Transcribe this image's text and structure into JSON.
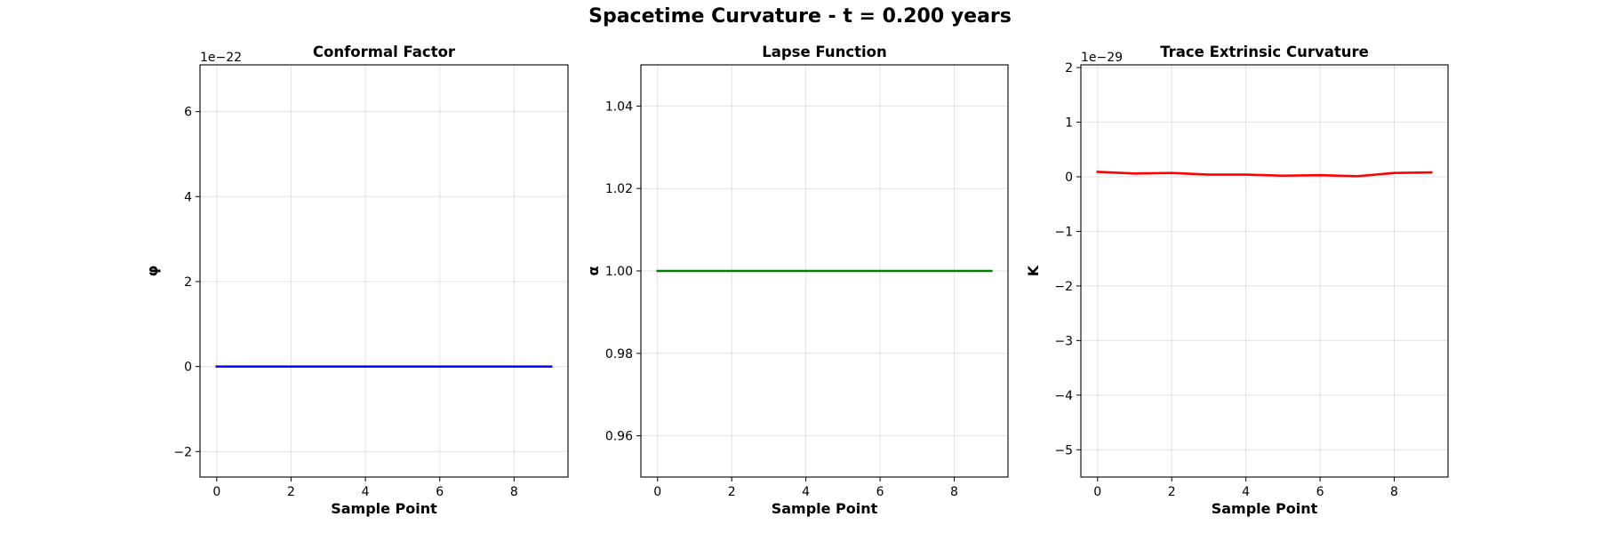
{
  "figure_title": "Spacetime Curvature - t = 0.200 years",
  "chart_data": [
    {
      "type": "line",
      "title": "Conformal Factor",
      "xlabel": "Sample Point",
      "ylabel": "φ",
      "offset_text": "1e−22",
      "color": "#0000ff",
      "xlim": [
        -0.45,
        9.45
      ],
      "ylim": [
        -2.6,
        7.1
      ],
      "x_ticks": [
        0,
        2,
        4,
        6,
        8
      ],
      "x_tick_labels": [
        "0",
        "2",
        "4",
        "6",
        "8"
      ],
      "y_ticks": [
        -2,
        0,
        2,
        4,
        6
      ],
      "y_tick_labels": [
        "−2",
        "0",
        "2",
        "4",
        "6"
      ],
      "grid": true,
      "series": [
        {
          "x": [
            0,
            1,
            2,
            3,
            4,
            5,
            6,
            7,
            8,
            9
          ],
          "y": [
            0,
            0,
            0,
            0,
            0,
            0,
            0,
            0,
            0,
            0
          ]
        }
      ]
    },
    {
      "type": "line",
      "title": "Lapse Function",
      "xlabel": "Sample Point",
      "ylabel": "α",
      "offset_text": "",
      "color": "#008000",
      "xlim": [
        -0.45,
        9.45
      ],
      "ylim": [
        0.95,
        1.05
      ],
      "x_ticks": [
        0,
        2,
        4,
        6,
        8
      ],
      "x_tick_labels": [
        "0",
        "2",
        "4",
        "6",
        "8"
      ],
      "y_ticks": [
        0.96,
        0.98,
        1.0,
        1.02,
        1.04
      ],
      "y_tick_labels": [
        "0.96",
        "0.98",
        "1.00",
        "1.02",
        "1.04"
      ],
      "grid": true,
      "series": [
        {
          "x": [
            0,
            1,
            2,
            3,
            4,
            5,
            6,
            7,
            8,
            9
          ],
          "y": [
            1,
            1,
            1,
            1,
            1,
            1,
            1,
            1,
            1,
            1
          ]
        }
      ]
    },
    {
      "type": "line",
      "title": "Trace Extrinsic Curvature",
      "xlabel": "Sample Point",
      "ylabel": "K",
      "offset_text": "1e−29",
      "color": "#ff0000",
      "xlim": [
        -0.45,
        9.45
      ],
      "ylim": [
        -5.5,
        2.05
      ],
      "x_ticks": [
        0,
        2,
        4,
        6,
        8
      ],
      "x_tick_labels": [
        "0",
        "2",
        "4",
        "6",
        "8"
      ],
      "y_ticks": [
        -5,
        -4,
        -3,
        -2,
        -1,
        0,
        1,
        2
      ],
      "y_tick_labels": [
        "−5",
        "−4",
        "−3",
        "−2",
        "−1",
        "0",
        "1",
        "2"
      ],
      "grid": true,
      "series": [
        {
          "x": [
            0,
            1,
            2,
            3,
            4,
            5,
            6,
            7,
            8,
            9
          ],
          "y": [
            0.09,
            0.06,
            0.07,
            0.04,
            0.04,
            0.02,
            0.03,
            0.01,
            0.07,
            0.08
          ]
        }
      ]
    }
  ]
}
